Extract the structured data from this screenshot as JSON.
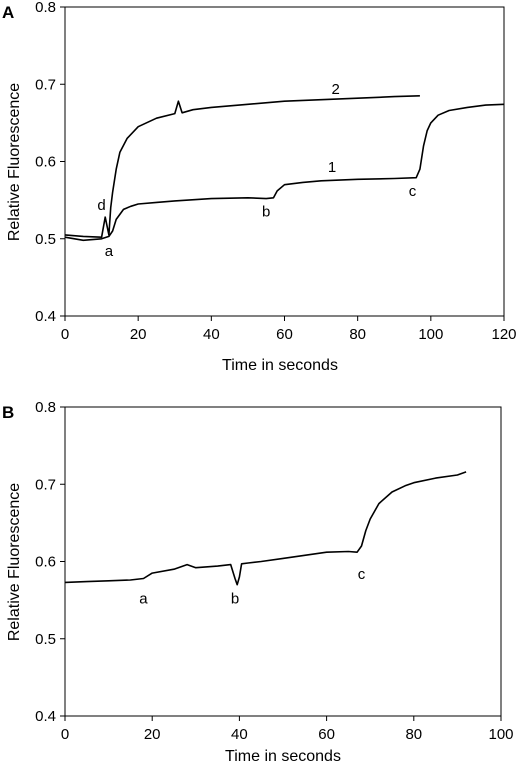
{
  "chart_data": [
    {
      "type": "line",
      "panel": "A",
      "xlabel": "Time in seconds",
      "ylabel": "Relative Fluorescence",
      "xlim": [
        0,
        120
      ],
      "ylim": [
        0.4,
        0.8
      ],
      "xticks": [
        0,
        20,
        40,
        60,
        80,
        100,
        120
      ],
      "yticks": [
        0.4,
        0.5,
        0.6,
        0.7,
        0.8
      ],
      "grid": false,
      "series": [
        {
          "name": "1",
          "x": [
            0,
            5,
            10,
            12,
            13,
            14,
            16,
            18,
            20,
            25,
            30,
            40,
            50,
            55,
            57,
            58,
            60,
            65,
            70,
            80,
            90,
            96,
            97,
            98,
            99,
            100,
            102,
            105,
            110,
            115,
            120
          ],
          "y": [
            0.502,
            0.498,
            0.5,
            0.503,
            0.51,
            0.525,
            0.538,
            0.542,
            0.545,
            0.547,
            0.549,
            0.552,
            0.553,
            0.552,
            0.553,
            0.562,
            0.57,
            0.573,
            0.575,
            0.577,
            0.578,
            0.579,
            0.59,
            0.62,
            0.64,
            0.65,
            0.66,
            0.666,
            0.67,
            0.673,
            0.674
          ]
        },
        {
          "name": "2",
          "x": [
            0,
            5,
            10,
            11,
            12,
            12.5,
            13,
            14,
            15,
            17,
            20,
            25,
            30,
            31,
            32,
            35,
            40,
            50,
            60,
            70,
            80,
            90,
            97
          ],
          "y": [
            0.505,
            0.503,
            0.502,
            0.528,
            0.505,
            0.54,
            0.56,
            0.59,
            0.612,
            0.63,
            0.645,
            0.656,
            0.662,
            0.678,
            0.663,
            0.667,
            0.67,
            0.674,
            0.678,
            0.68,
            0.682,
            0.684,
            0.685
          ]
        }
      ],
      "annotations": [
        {
          "text": "2",
          "x": 74,
          "y": 0.694
        },
        {
          "text": "1",
          "x": 73,
          "y": 0.593
        },
        {
          "text": "d",
          "x": 10,
          "y": 0.544
        },
        {
          "text": "a",
          "x": 12,
          "y": 0.484
        },
        {
          "text": "b",
          "x": 55,
          "y": 0.535
        },
        {
          "text": "c",
          "x": 95,
          "y": 0.562
        }
      ]
    },
    {
      "type": "line",
      "panel": "B",
      "xlabel": "Time in seconds",
      "ylabel": "Relative Fluorescence",
      "xlim": [
        0,
        100
      ],
      "ylim": [
        0.4,
        0.8
      ],
      "xticks": [
        0,
        20,
        40,
        60,
        80,
        100
      ],
      "yticks": [
        0.4,
        0.5,
        0.6,
        0.7,
        0.8
      ],
      "grid": false,
      "series": [
        {
          "name": "",
          "x": [
            0,
            5,
            10,
            15,
            18,
            20,
            25,
            28,
            30,
            35,
            38,
            39,
            39.5,
            40,
            40.5,
            42,
            45,
            50,
            55,
            60,
            65,
            67,
            68,
            69,
            70,
            72,
            75,
            78,
            80,
            85,
            90,
            92
          ],
          "y": [
            0.573,
            0.574,
            0.575,
            0.576,
            0.578,
            0.585,
            0.59,
            0.596,
            0.592,
            0.594,
            0.596,
            0.578,
            0.57,
            0.58,
            0.597,
            0.598,
            0.6,
            0.604,
            0.608,
            0.612,
            0.613,
            0.612,
            0.62,
            0.64,
            0.655,
            0.675,
            0.69,
            0.698,
            0.702,
            0.708,
            0.712,
            0.716
          ]
        }
      ],
      "annotations": [
        {
          "text": "a",
          "x": 18,
          "y": 0.552
        },
        {
          "text": "b",
          "x": 39,
          "y": 0.552
        },
        {
          "text": "c",
          "x": 68,
          "y": 0.584
        }
      ]
    }
  ]
}
